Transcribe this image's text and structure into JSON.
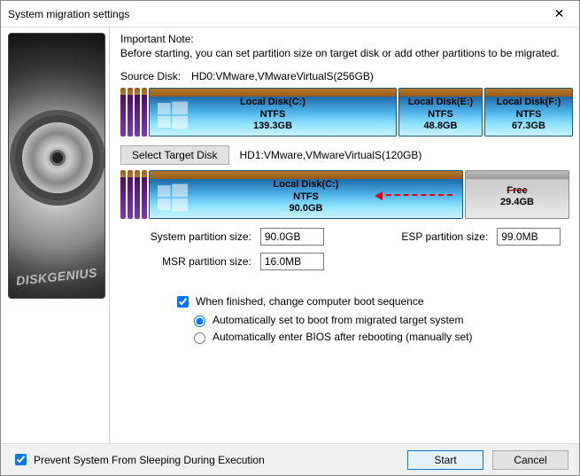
{
  "window": {
    "title": "System migration settings",
    "close_glyph": "✕"
  },
  "sidebar": {
    "brand": "DISKGENIUS"
  },
  "note": {
    "title": "Important Note:",
    "body": "Before starting, you can set partition size on target disk or add other partitions to be migrated."
  },
  "source": {
    "label": "Source Disk:",
    "value": "HD0:VMware,VMwareVirtualS(256GB)",
    "partitions": [
      {
        "name": "Local Disk(C:)",
        "fs": "NTFS",
        "size": "139.3GB",
        "flex": 280,
        "has_logo": true
      },
      {
        "name": "Local Disk(E:)",
        "fs": "NTFS",
        "size": "48.8GB",
        "flex": 95,
        "has_logo": false
      },
      {
        "name": "Local Disk(F:)",
        "fs": "NTFS",
        "size": "67.3GB",
        "flex": 100,
        "has_logo": false
      }
    ]
  },
  "target": {
    "button": "Select Target Disk",
    "value": "HD1:VMware,VMwareVirtualS(120GB)",
    "partitions": [
      {
        "name": "Local Disk(C:)",
        "fs": "NTFS",
        "size": "90.0GB",
        "flex": 355,
        "has_logo": true,
        "free": false
      },
      {
        "name": "Free",
        "fs": "",
        "size": "29.4GB",
        "flex": 118,
        "has_logo": false,
        "free": true
      }
    ]
  },
  "sizes": {
    "sys_label": "System partition size:",
    "sys_value": "90.0GB",
    "esp_label": "ESP partition size:",
    "esp_value": "99.0MB",
    "msr_label": "MSR partition size:",
    "msr_value": "16.0MB"
  },
  "options": {
    "finish_label": "When finished, change computer boot sequence",
    "finish_checked": true,
    "auto_label": "Automatically set to boot from migrated target system",
    "bios_label": "Automatically enter BIOS after rebooting (manually set)",
    "boot_choice": "auto"
  },
  "footer": {
    "sleep_label": "Prevent System From Sleeping During Execution",
    "sleep_checked": true,
    "start": "Start",
    "cancel": "Cancel"
  },
  "colors": {
    "accent": "#0078d7",
    "header_gradient": [
      "#b7792a",
      "#975b1a"
    ],
    "part_gradient": [
      "#1e6aa8",
      "#8fe3ff"
    ],
    "arrow": "#e00000"
  }
}
